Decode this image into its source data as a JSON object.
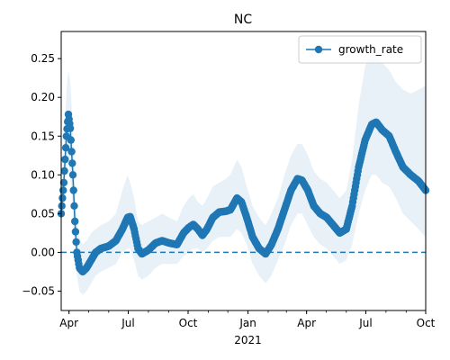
{
  "chart_data": {
    "type": "line",
    "title": "NC",
    "xlabel": "",
    "ylabel": "",
    "ylim": [
      -0.075,
      0.285
    ],
    "xlim": [
      "2020-03-20",
      "2021-10-01"
    ],
    "yticks": [
      -0.05,
      0.0,
      0.05,
      0.1,
      0.15,
      0.2,
      0.25
    ],
    "ytick_labels": [
      "−0.05",
      "0.00",
      "0.05",
      "0.10",
      "0.15",
      "0.20",
      "0.25"
    ],
    "xticks": [
      {
        "date": "2020-04-01",
        "label": "Apr"
      },
      {
        "date": "2020-07-01",
        "label": "Jul"
      },
      {
        "date": "2020-10-01",
        "label": "Oct"
      },
      {
        "date": "2021-01-01",
        "label": "Jan"
      },
      {
        "date": "2021-04-01",
        "label": "Apr"
      },
      {
        "date": "2021-07-01",
        "label": "Jul"
      },
      {
        "date": "2021-10-01",
        "label": "Oct"
      }
    ],
    "x_year_label": {
      "date": "2021-01-01",
      "label": "2021"
    },
    "grid": false,
    "legend": {
      "position": "top-right"
    },
    "reference_line": {
      "y": 0.0,
      "style": "dashed"
    },
    "series": [
      {
        "name": "growth_rate",
        "color": "#1f77b4",
        "band_color": "#1f77b4",
        "marker": "circle",
        "points": [
          {
            "date": "2020-03-20",
            "y": 0.05,
            "lo": 0.04,
            "hi": 0.06
          },
          {
            "date": "2020-03-24",
            "y": 0.09,
            "lo": 0.06,
            "hi": 0.13
          },
          {
            "date": "2020-03-28",
            "y": 0.15,
            "lo": 0.1,
            "hi": 0.21
          },
          {
            "date": "2020-03-31",
            "y": 0.178,
            "lo": 0.12,
            "hi": 0.235
          },
          {
            "date": "2020-04-03",
            "y": 0.16,
            "lo": 0.1,
            "hi": 0.22
          },
          {
            "date": "2020-04-07",
            "y": 0.1,
            "lo": 0.05,
            "hi": 0.16
          },
          {
            "date": "2020-04-10",
            "y": 0.04,
            "lo": 0.0,
            "hi": 0.09
          },
          {
            "date": "2020-04-13",
            "y": 0.0,
            "lo": -0.03,
            "hi": 0.04
          },
          {
            "date": "2020-04-17",
            "y": -0.02,
            "lo": -0.05,
            "hi": 0.02
          },
          {
            "date": "2020-04-22",
            "y": -0.025,
            "lo": -0.055,
            "hi": 0.01
          },
          {
            "date": "2020-04-28",
            "y": -0.02,
            "lo": -0.05,
            "hi": 0.015
          },
          {
            "date": "2020-05-05",
            "y": -0.01,
            "lo": -0.04,
            "hi": 0.025
          },
          {
            "date": "2020-05-12",
            "y": 0.0,
            "lo": -0.03,
            "hi": 0.03
          },
          {
            "date": "2020-05-20",
            "y": 0.005,
            "lo": -0.025,
            "hi": 0.035
          },
          {
            "date": "2020-06-01",
            "y": 0.008,
            "lo": -0.02,
            "hi": 0.04
          },
          {
            "date": "2020-06-12",
            "y": 0.015,
            "lo": -0.015,
            "hi": 0.05
          },
          {
            "date": "2020-06-22",
            "y": 0.03,
            "lo": 0.0,
            "hi": 0.08
          },
          {
            "date": "2020-06-30",
            "y": 0.045,
            "lo": 0.005,
            "hi": 0.1
          },
          {
            "date": "2020-07-04",
            "y": 0.046,
            "lo": 0.005,
            "hi": 0.09
          },
          {
            "date": "2020-07-10",
            "y": 0.03,
            "lo": -0.01,
            "hi": 0.07
          },
          {
            "date": "2020-07-16",
            "y": 0.005,
            "lo": -0.03,
            "hi": 0.04
          },
          {
            "date": "2020-07-22",
            "y": -0.002,
            "lo": -0.035,
            "hi": 0.035
          },
          {
            "date": "2020-08-01",
            "y": 0.003,
            "lo": -0.03,
            "hi": 0.04
          },
          {
            "date": "2020-08-12",
            "y": 0.012,
            "lo": -0.02,
            "hi": 0.045
          },
          {
            "date": "2020-08-22",
            "y": 0.015,
            "lo": -0.015,
            "hi": 0.05
          },
          {
            "date": "2020-09-02",
            "y": 0.012,
            "lo": -0.015,
            "hi": 0.045
          },
          {
            "date": "2020-09-14",
            "y": 0.01,
            "lo": -0.015,
            "hi": 0.04
          },
          {
            "date": "2020-09-24",
            "y": 0.025,
            "lo": -0.005,
            "hi": 0.06
          },
          {
            "date": "2020-10-02",
            "y": 0.032,
            "lo": 0.0,
            "hi": 0.07
          },
          {
            "date": "2020-10-09",
            "y": 0.036,
            "lo": 0.005,
            "hi": 0.075
          },
          {
            "date": "2020-10-16",
            "y": 0.03,
            "lo": 0.005,
            "hi": 0.065
          },
          {
            "date": "2020-10-23",
            "y": 0.022,
            "lo": 0.0,
            "hi": 0.06
          },
          {
            "date": "2020-10-30",
            "y": 0.03,
            "lo": 0.005,
            "hi": 0.07
          },
          {
            "date": "2020-11-08",
            "y": 0.045,
            "lo": 0.015,
            "hi": 0.085
          },
          {
            "date": "2020-11-18",
            "y": 0.052,
            "lo": 0.02,
            "hi": 0.09
          },
          {
            "date": "2020-11-28",
            "y": 0.053,
            "lo": 0.02,
            "hi": 0.095
          },
          {
            "date": "2020-12-05",
            "y": 0.055,
            "lo": 0.02,
            "hi": 0.1
          },
          {
            "date": "2020-12-15",
            "y": 0.07,
            "lo": 0.03,
            "hi": 0.12
          },
          {
            "date": "2020-12-22",
            "y": 0.065,
            "lo": 0.025,
            "hi": 0.11
          },
          {
            "date": "2020-12-30",
            "y": 0.045,
            "lo": 0.01,
            "hi": 0.085
          },
          {
            "date": "2021-01-08",
            "y": 0.02,
            "lo": -0.015,
            "hi": 0.06
          },
          {
            "date": "2021-01-18",
            "y": 0.005,
            "lo": -0.03,
            "hi": 0.045
          },
          {
            "date": "2021-01-28",
            "y": -0.002,
            "lo": -0.04,
            "hi": 0.035
          },
          {
            "date": "2021-02-06",
            "y": 0.01,
            "lo": -0.03,
            "hi": 0.05
          },
          {
            "date": "2021-02-16",
            "y": 0.03,
            "lo": -0.01,
            "hi": 0.07
          },
          {
            "date": "2021-02-26",
            "y": 0.055,
            "lo": 0.01,
            "hi": 0.1
          },
          {
            "date": "2021-03-08",
            "y": 0.08,
            "lo": 0.035,
            "hi": 0.125
          },
          {
            "date": "2021-03-18",
            "y": 0.095,
            "lo": 0.05,
            "hi": 0.14
          },
          {
            "date": "2021-03-25",
            "y": 0.093,
            "lo": 0.05,
            "hi": 0.14
          },
          {
            "date": "2021-04-03",
            "y": 0.08,
            "lo": 0.035,
            "hi": 0.125
          },
          {
            "date": "2021-04-12",
            "y": 0.06,
            "lo": 0.02,
            "hi": 0.105
          },
          {
            "date": "2021-04-22",
            "y": 0.05,
            "lo": 0.01,
            "hi": 0.095
          },
          {
            "date": "2021-05-02",
            "y": 0.045,
            "lo": 0.005,
            "hi": 0.09
          },
          {
            "date": "2021-05-12",
            "y": 0.035,
            "lo": -0.005,
            "hi": 0.08
          },
          {
            "date": "2021-05-22",
            "y": 0.025,
            "lo": -0.015,
            "hi": 0.07
          },
          {
            "date": "2021-06-01",
            "y": 0.03,
            "lo": -0.01,
            "hi": 0.08
          },
          {
            "date": "2021-06-10",
            "y": 0.06,
            "lo": 0.01,
            "hi": 0.12
          },
          {
            "date": "2021-06-20",
            "y": 0.11,
            "lo": 0.05,
            "hi": 0.19
          },
          {
            "date": "2021-06-30",
            "y": 0.145,
            "lo": 0.08,
            "hi": 0.24
          },
          {
            "date": "2021-07-10",
            "y": 0.165,
            "lo": 0.1,
            "hi": 0.26
          },
          {
            "date": "2021-07-17",
            "y": 0.168,
            "lo": 0.1,
            "hi": 0.255
          },
          {
            "date": "2021-07-26",
            "y": 0.158,
            "lo": 0.09,
            "hi": 0.245
          },
          {
            "date": "2021-08-06",
            "y": 0.15,
            "lo": 0.085,
            "hi": 0.235
          },
          {
            "date": "2021-08-16",
            "y": 0.13,
            "lo": 0.07,
            "hi": 0.22
          },
          {
            "date": "2021-08-27",
            "y": 0.11,
            "lo": 0.05,
            "hi": 0.21
          },
          {
            "date": "2021-09-08",
            "y": 0.1,
            "lo": 0.04,
            "hi": 0.205
          },
          {
            "date": "2021-09-20",
            "y": 0.092,
            "lo": 0.03,
            "hi": 0.21
          },
          {
            "date": "2021-10-01",
            "y": 0.08,
            "lo": 0.02,
            "hi": 0.215
          }
        ]
      }
    ]
  }
}
